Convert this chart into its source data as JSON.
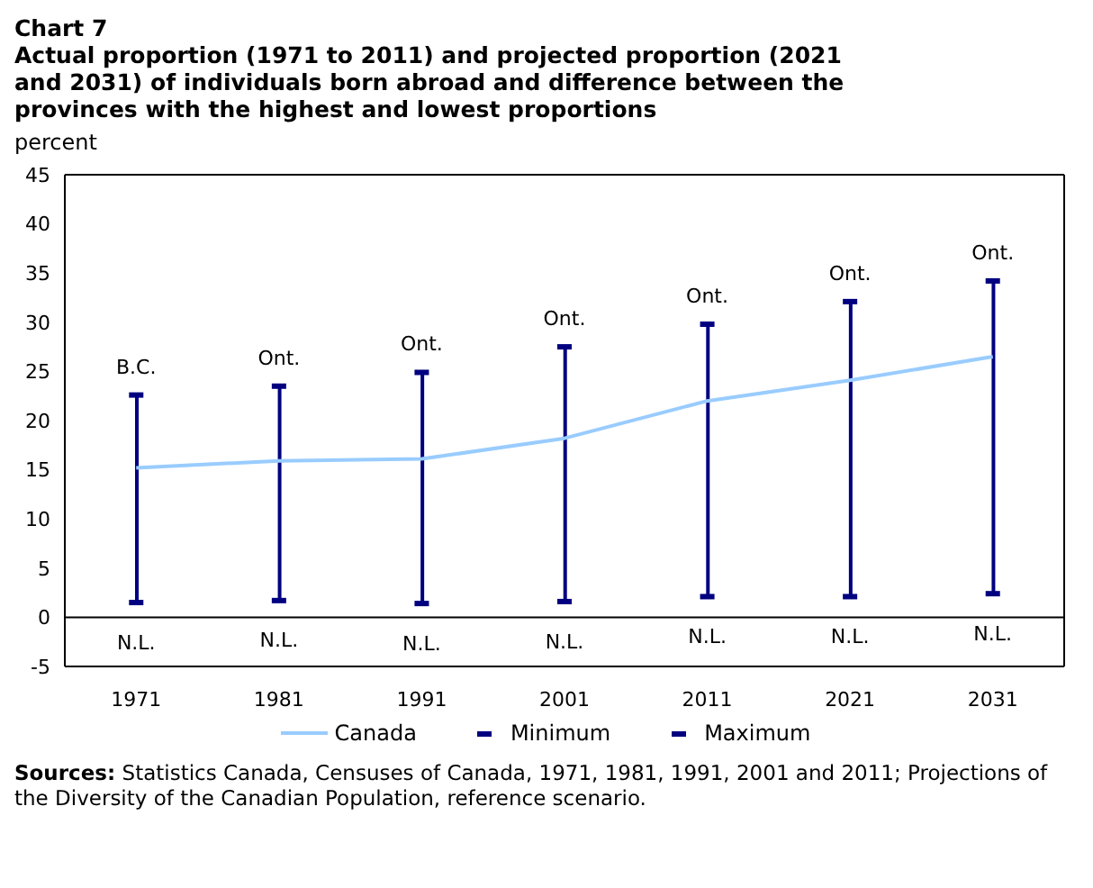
{
  "chart_data": {
    "type": "line",
    "title": "Chart 7",
    "subtitle": "Actual proportion (1971 to 2011) and projected proportion (2021 and 2031) of individuals born abroad and difference between the provinces with the highest and lowest proportions",
    "ylabel": "percent",
    "categories": [
      "1971",
      "1981",
      "1991",
      "2001",
      "2011",
      "2021",
      "2031"
    ],
    "series": [
      {
        "type": "bar",
        "color": "#000080",
        "base": [
          1.5,
          1.7,
          1.4,
          1.6,
          2.1,
          2.1,
          2.4
        ],
        "values": [
          21.1,
          21.8,
          23.5,
          25.9,
          27.7,
          30.0,
          31.8
        ]
      },
      {
        "name": "Canada",
        "marker": "none",
        "color": "#99ccff",
        "values": [
          15.2,
          15.9,
          16.1,
          18.2,
          22.0,
          24.1,
          26.5
        ]
      },
      {
        "name": "Minimum",
        "type": "scatter",
        "marker": "square",
        "color": "#000080",
        "values": [
          1.5,
          1.7,
          1.4,
          1.6,
          2.1,
          2.1,
          2.4
        ]
      },
      {
        "name": "Maximum",
        "type": "scatter",
        "marker": "square",
        "color": "#000080",
        "values": [
          22.6,
          23.5,
          24.9,
          27.5,
          29.8,
          32.1,
          34.2
        ]
      }
    ],
    "ylim": [
      -5,
      45
    ],
    "yticks": [
      -5,
      0,
      5,
      10,
      15,
      20,
      25,
      30,
      35,
      40,
      45
    ],
    "legend": "bottom",
    "ref_lines": [
      {
        "axis": "y",
        "value": 0,
        "color": "#000000"
      }
    ],
    "annotations": [
      {
        "text": "B.C.",
        "x": "1971",
        "y": 22.6
      },
      {
        "text": "Ont.",
        "x": "1981",
        "y": 23.5
      },
      {
        "text": "Ont.",
        "x": "1991",
        "y": 24.9
      },
      {
        "text": "Ont.",
        "x": "2001",
        "y": 27.5
      },
      {
        "text": "Ont.",
        "x": "2011",
        "y": 29.8
      },
      {
        "text": "Ont.",
        "x": "2021",
        "y": 32.1
      },
      {
        "text": "Ont.",
        "x": "2031",
        "y": 34.2
      },
      {
        "text": "N.L.",
        "x": "1971",
        "y": 1.5
      },
      {
        "text": "N.L.",
        "x": "1981",
        "y": 1.7
      },
      {
        "text": "N.L.",
        "x": "1991",
        "y": 1.4
      },
      {
        "text": "N.L.",
        "x": "2001",
        "y": 1.6
      },
      {
        "text": "N.L.",
        "x": "2011",
        "y": 2.1
      },
      {
        "text": "N.L.",
        "x": "2021",
        "y": 2.1
      },
      {
        "text": "N.L.",
        "x": "2031",
        "y": 2.4
      },
      "Sources: Statistics Canada, Censuses of Canada, 1971, 1981, 1991, 2001 and 2011; Projections of the Diversity of the Canadian Population, reference scenario."
    ]
  }
}
